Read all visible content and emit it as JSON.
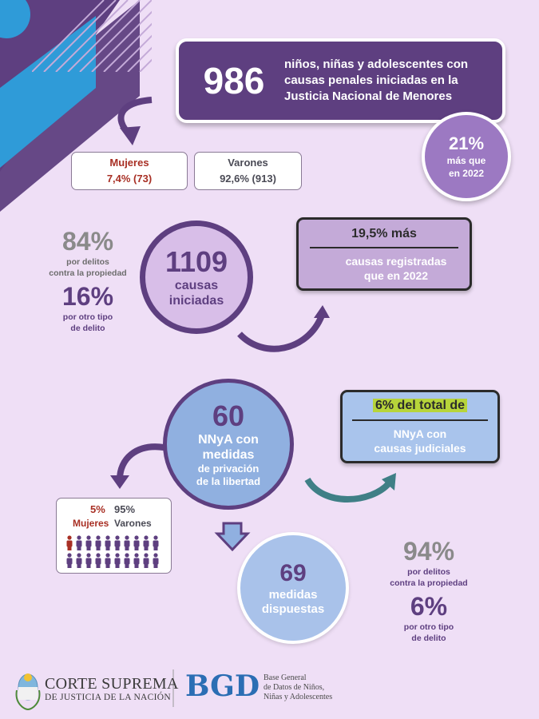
{
  "banner": {
    "number": "986",
    "text": "niños, niñas y adolescentes con causas penales iniciadas en la Justicia Nacional de Menores"
  },
  "growth_children": {
    "percent": "21%",
    "line1": "más que",
    "line2": "en 2022"
  },
  "gender_children": {
    "women_label": "Mujeres",
    "women_value": "7,4% (73)",
    "men_label": "Varones",
    "men_value": "92,6% (913)"
  },
  "crime_split_causas": {
    "property_pct": "84%",
    "property_line1": "por delitos",
    "property_line2": "contra la propiedad",
    "other_pct": "16%",
    "other_line1": "por otro tipo",
    "other_line2": "de delito"
  },
  "causas": {
    "number": "1109",
    "line1": "causas",
    "line2": "iniciadas"
  },
  "causas_growth": {
    "headline": "19,5% más",
    "line1": "causas registradas",
    "line2": "que en 2022"
  },
  "medidas_privacion": {
    "number": "60",
    "line1": "NNyA con",
    "line2": "medidas",
    "line3": "de privación",
    "line4": "de la libertad"
  },
  "share_of_total": {
    "headline": "6% del total de",
    "line1": "NNyA con",
    "line2": "causas judiciales"
  },
  "gender_medidas": {
    "women_pct": "5%",
    "men_pct": "95%",
    "women_label": "Mujeres",
    "men_label": "Varones",
    "women_icons": 1,
    "total_icons": 20
  },
  "medidas_dispuestas": {
    "number": "69",
    "line1": "medidas",
    "line2": "dispuestas"
  },
  "crime_split_medidas": {
    "property_pct": "94%",
    "property_line1": "por delitos",
    "property_line2": "contra la propiedad",
    "other_pct": "6%",
    "other_line1": "por otro tipo",
    "other_line2": "de delito"
  },
  "footer": {
    "cs_title": "CORTE SUPREMA",
    "cs_subtitle": "DE JUSTICIA DE LA NACIÓN",
    "bgd_logo": "BGD",
    "bgd_line1": "Base General",
    "bgd_line2": "de Datos de Niños,",
    "bgd_line3": "Niñas y Adolescentes"
  },
  "colors": {
    "background": "#efdff6",
    "dark_purple": "#5e3f80",
    "light_purple": "#d8bee8",
    "blue": "#90b0e0",
    "red": "#a82f24",
    "highlight_green": "#b7d43a",
    "teal_arrow": "#3f7f86"
  }
}
